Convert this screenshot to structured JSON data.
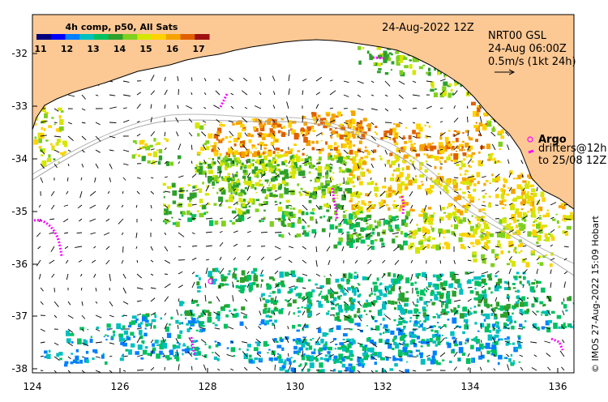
{
  "map": {
    "date_label": "24-Aug-2022 12Z",
    "product_title": "4h comp, p50, All Sats",
    "colorbar_ticks": [
      "11",
      "12",
      "13",
      "14",
      "15",
      "16",
      "17"
    ],
    "colorbar_colors": [
      "#00007f",
      "#0000ff",
      "#007fff",
      "#00bfbf",
      "#00c060",
      "#2ea02c",
      "#7fd01f",
      "#d6e600",
      "#ffd200",
      "#f5a300",
      "#e06000",
      "#a01010"
    ],
    "legend": {
      "line1": "NRT00 GSL",
      "line2": "24-Aug 06:00Z",
      "line3": "0.5m/s (1kt 24h)"
    },
    "argo_label": "Argo",
    "drifter_line1": "drifters@12h",
    "drifter_line2": "to 25/08 12Z",
    "credit": "© IMOS 27-Aug-2022 15:09 Hobart",
    "lat_ticks": [
      "-32",
      "-33",
      "-34",
      "-35",
      "-36",
      "-37",
      "-38"
    ],
    "lon_ticks": [
      "124",
      "126",
      "128",
      "130",
      "132",
      "134",
      "136"
    ],
    "colors": {
      "land": "#fcc894",
      "coast": "#000000",
      "argo": "#ff00ff",
      "contour": "#a8a8a8"
    }
  }
}
